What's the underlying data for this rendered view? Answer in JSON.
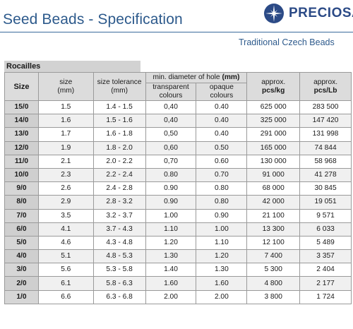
{
  "header": {
    "title": "Seed Beads - Specification",
    "brand": "PRECIOSA",
    "tagline": "Traditional Czech Beads",
    "logo_icon": "star-burst-icon"
  },
  "section_label": "Rocailles",
  "table": {
    "headers": {
      "size": "Size",
      "size_mm_top": "size",
      "size_mm_bottom": "(mm)",
      "tolerance_top": "size tolerance",
      "tolerance_bottom": "(mm)",
      "hole_group_text": "min. diameter of hole ",
      "hole_group_unit": "(mm)",
      "transparent_top": "transparent",
      "transparent_bottom": "colours",
      "opaque_top": "opaque",
      "opaque_bottom": "colours",
      "kg_top": "approx.",
      "kg_bottom": "pcs/kg",
      "lb_top": "approx.",
      "lb_bottom": "pcs/Lb"
    },
    "rows": [
      {
        "size": "15/0",
        "mm": "1.5",
        "tolerance": "1.4 - 1.5",
        "transparent": "0,40",
        "opaque": "0.40",
        "kg": "625 000",
        "lb": "283 500"
      },
      {
        "size": "14/0",
        "mm": "1.6",
        "tolerance": "1.5 - 1.6",
        "transparent": "0,40",
        "opaque": "0.40",
        "kg": "325 000",
        "lb": "147 420"
      },
      {
        "size": "13/0",
        "mm": "1.7",
        "tolerance": "1.6 - 1.8",
        "transparent": "0,50",
        "opaque": "0.40",
        "kg": "291 000",
        "lb": "131 998"
      },
      {
        "size": "12/0",
        "mm": "1.9",
        "tolerance": "1.8 - 2.0",
        "transparent": "0,60",
        "opaque": "0.50",
        "kg": "165 000",
        "lb": "74 844"
      },
      {
        "size": "11/0",
        "mm": "2.1",
        "tolerance": "2.0 - 2.2",
        "transparent": "0,70",
        "opaque": "0.60",
        "kg": "130 000",
        "lb": "58 968"
      },
      {
        "size": "10/0",
        "mm": "2.3",
        "tolerance": "2.2 - 2.4",
        "transparent": "0.80",
        "opaque": "0.70",
        "kg": "91 000",
        "lb": "41 278"
      },
      {
        "size": "9/0",
        "mm": "2.6",
        "tolerance": "2.4 - 2.8",
        "transparent": "0.90",
        "opaque": "0.80",
        "kg": "68 000",
        "lb": "30 845"
      },
      {
        "size": "8/0",
        "mm": "2.9",
        "tolerance": "2.8 - 3.2",
        "transparent": "0.90",
        "opaque": "0.80",
        "kg": "42 000",
        "lb": "19 051"
      },
      {
        "size": "7/0",
        "mm": "3.5",
        "tolerance": "3.2 - 3.7",
        "transparent": "1.00",
        "opaque": "0.90",
        "kg": "21 100",
        "lb": "9 571"
      },
      {
        "size": "6/0",
        "mm": "4.1",
        "tolerance": "3.7 - 4.3",
        "transparent": "1.10",
        "opaque": "1.00",
        "kg": "13 300",
        "lb": "6 033"
      },
      {
        "size": "5/0",
        "mm": "4.6",
        "tolerance": "4.3 - 4.8",
        "transparent": "1.20",
        "opaque": "1.10",
        "kg": "12 100",
        "lb": "5 489"
      },
      {
        "size": "4/0",
        "mm": "5.1",
        "tolerance": "4.8 - 5.3",
        "transparent": "1.30",
        "opaque": "1.20",
        "kg": "7 400",
        "lb": "3 357"
      },
      {
        "size": "3/0",
        "mm": "5.6",
        "tolerance": "5.3 - 5.8",
        "transparent": "1.40",
        "opaque": "1.30",
        "kg": "5 300",
        "lb": "2 404"
      },
      {
        "size": "2/0",
        "mm": "6.1",
        "tolerance": "5.8 - 6.3",
        "transparent": "1.60",
        "opaque": "1.60",
        "kg": "4 800",
        "lb": "2 177"
      },
      {
        "size": "1/0",
        "mm": "6.6",
        "tolerance": "6.3 - 6.8",
        "transparent": "2.00",
        "opaque": "2.00",
        "kg": "3 800",
        "lb": "1 724"
      }
    ]
  },
  "colors": {
    "brand_blue": "#2b4a86",
    "title_blue": "#2d5a8c",
    "header_gray": "#dcdcdc",
    "size_col_gray": "#d6d6d6"
  }
}
